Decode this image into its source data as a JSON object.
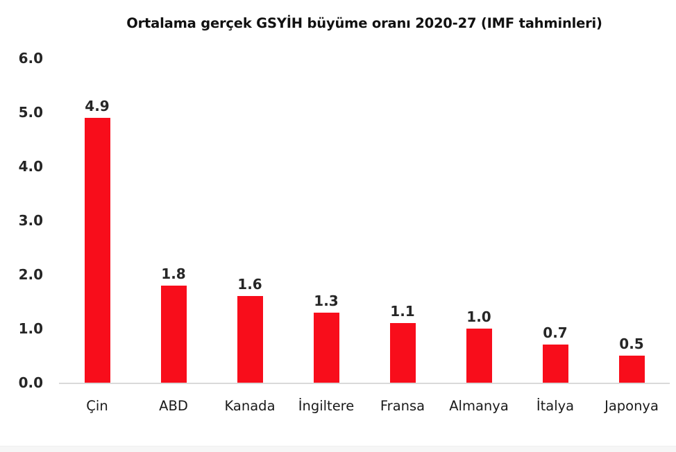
{
  "chart_data": {
    "type": "bar",
    "title": "Ortalama gerçek GSYİH büyüme oranı 2020-27 (IMF tahminleri)",
    "categories": [
      "Çin",
      "ABD",
      "Kanada",
      "İngiltere",
      "Fransa",
      "Almanya",
      "İtalya",
      "Japonya"
    ],
    "values": [
      4.9,
      1.8,
      1.6,
      1.3,
      1.1,
      1.0,
      0.7,
      0.5
    ],
    "value_labels": [
      "4.9",
      "1.8",
      "1.6",
      "1.3",
      "1.1",
      "1.0",
      "0.7",
      "0.5"
    ],
    "xlabel": "",
    "ylabel": "",
    "ylim": [
      0.0,
      6.0
    ],
    "y_tick_labels": [
      "6.0",
      "5.0",
      "4.0",
      "3.0",
      "2.0",
      "1.0",
      "0.0"
    ],
    "grid": false,
    "legend": false,
    "bar_color": "#f80d1b",
    "baseline_color": "#d9d9d9",
    "text_color": "#262626"
  }
}
